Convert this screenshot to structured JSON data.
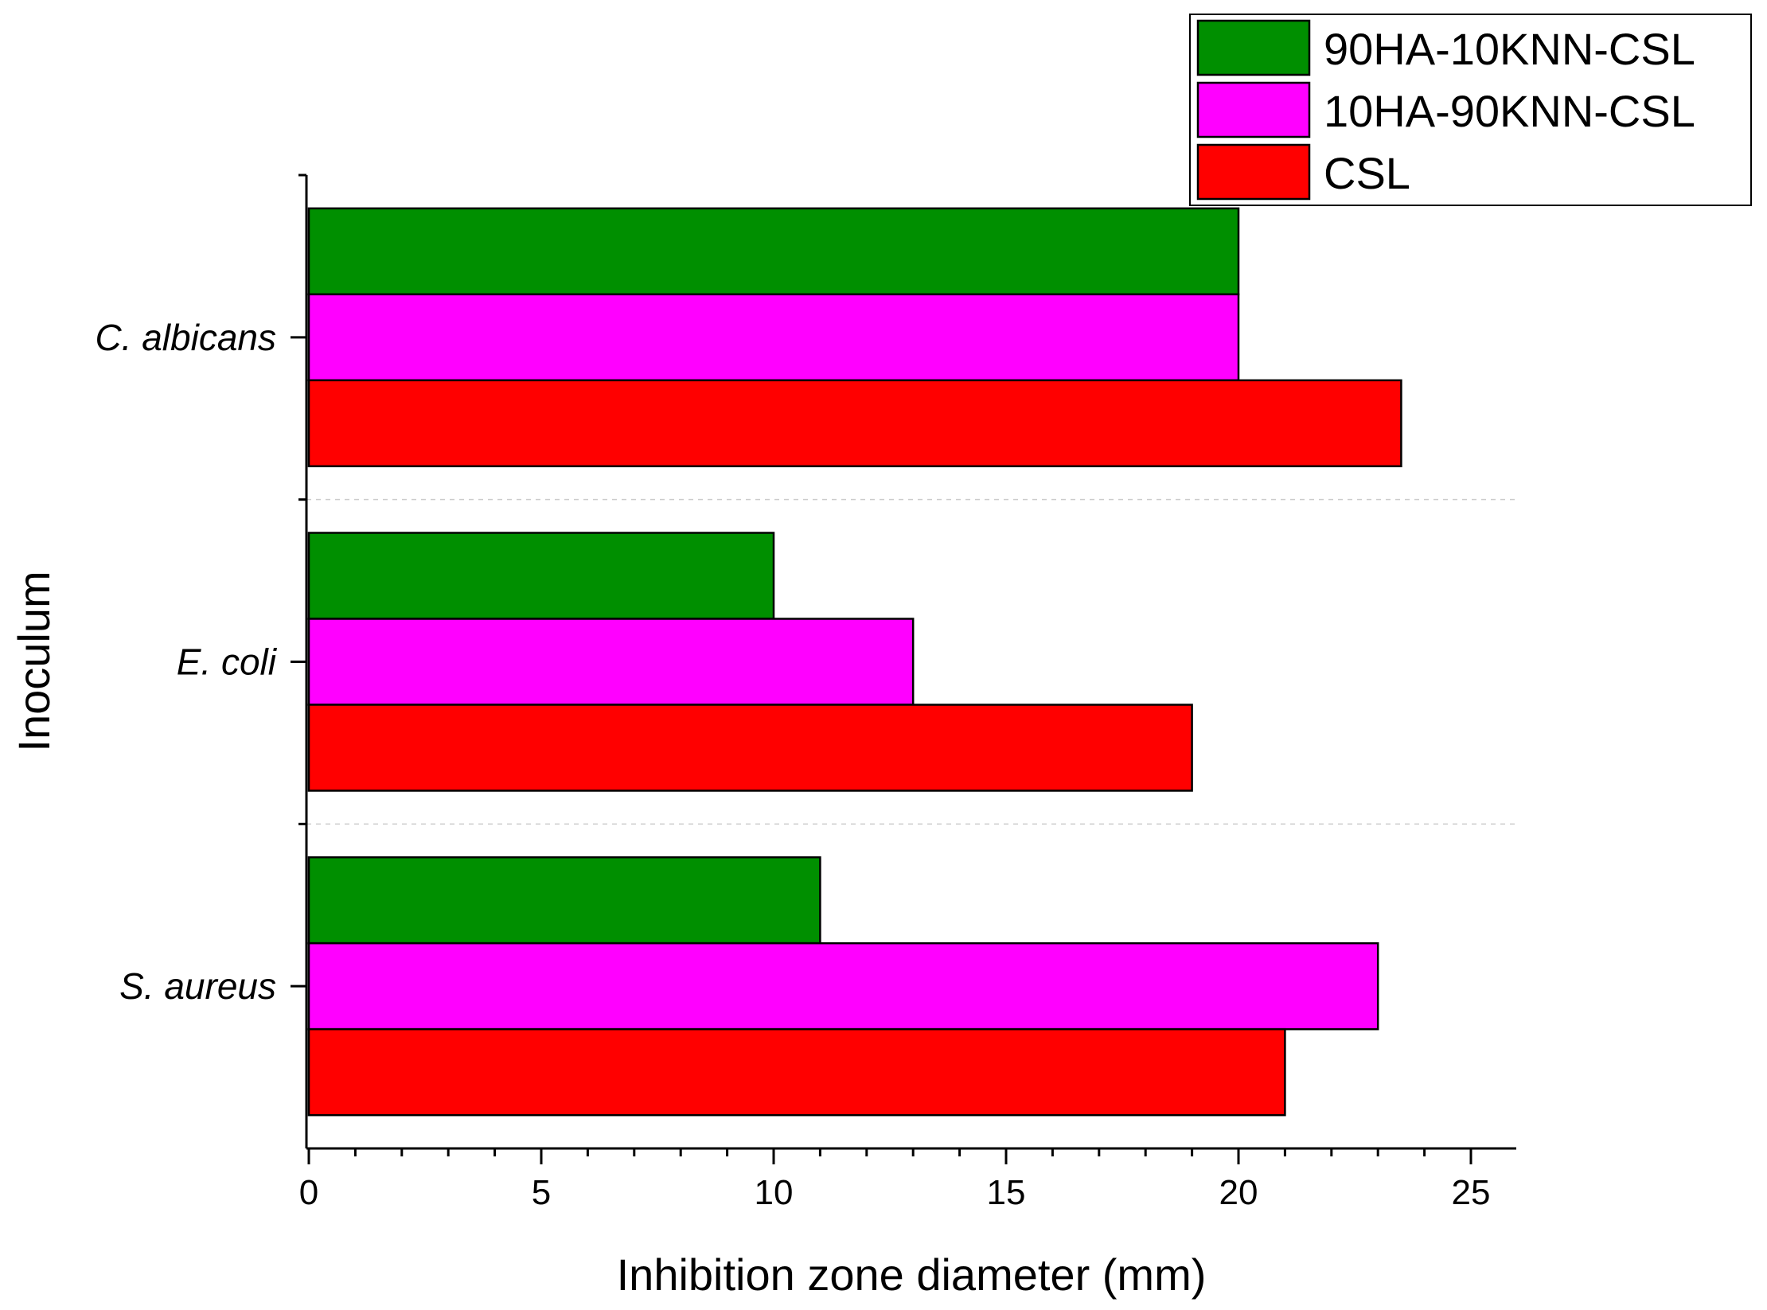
{
  "chart_data": {
    "type": "bar",
    "orientation": "horizontal",
    "title": "",
    "xlabel": "Inhibition zone diameter (mm)",
    "ylabel": "Inoculum",
    "xlim": [
      0,
      26
    ],
    "xticks": [
      0,
      5,
      10,
      15,
      20,
      25
    ],
    "categories": [
      "C. albicans",
      "E. coli",
      "S. aureus"
    ],
    "series": [
      {
        "name": "90HA-10KNN-CSL",
        "color": "#008f00",
        "values": [
          20,
          10,
          11
        ]
      },
      {
        "name": "10HA-90KNN-CSL",
        "color": "#ff00ff",
        "values": [
          20,
          13,
          23
        ]
      },
      {
        "name": "CSL",
        "color": "#ff0000",
        "values": [
          23.5,
          19,
          21
        ]
      }
    ],
    "grid": "category separators (dashed)",
    "legend_position": "top-right"
  }
}
